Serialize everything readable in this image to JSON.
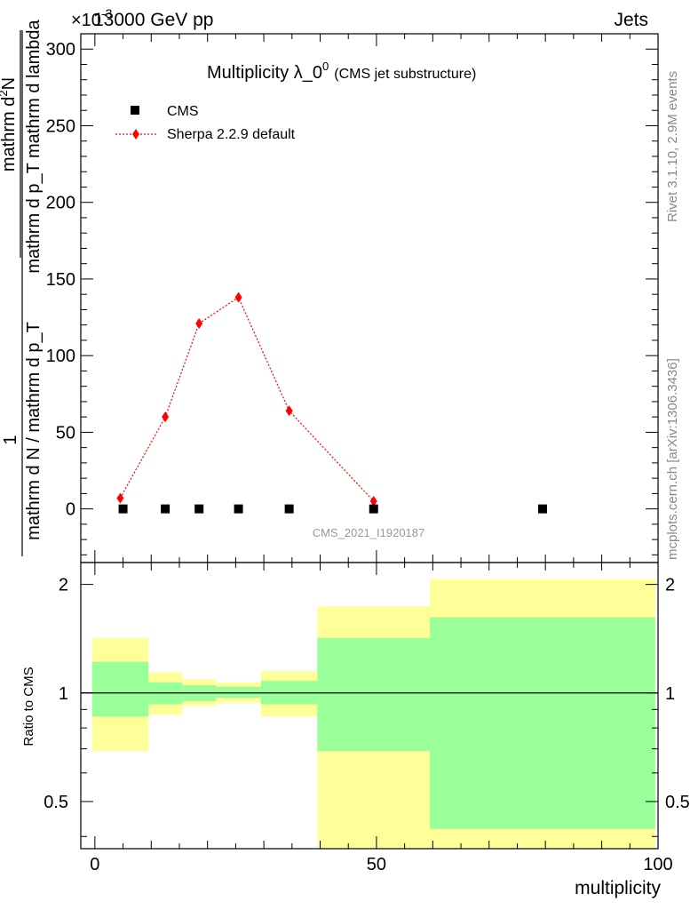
{
  "header": {
    "left": "13000 GeV pp",
    "right": "Jets",
    "exponent_label": "×10",
    "exponent_sup": "-3"
  },
  "side_labels": {
    "rivet": "Rivet 3.1.10,  2.9M events",
    "mcplots": "mcplots.cern.ch [arXiv:1306.3436]"
  },
  "watermark": "CMS_2021_I1920187",
  "colors": {
    "mc": "#ff0000",
    "data": "#000000",
    "band_inner": "#99ff99",
    "band_outer": "#ffff99"
  },
  "chart_data": [
    {
      "type": "scatter",
      "title": "Multiplicity λ_0",
      "title_sup": "0",
      "title_suffix": "(CMS jet substructure)",
      "ylabel_numerator": "1",
      "ylabel_denominator": "mathrm d N / mathrm d p_T",
      "ylabel_main": "mathrm d",
      "ylabel_sub": "2",
      "ylabel_tail": "N",
      "ylabel_den2": "mathrm d p_T mathrm d lambda",
      "ylim": [
        -0.035,
        0.31
      ],
      "yticks": [
        0,
        50,
        100,
        150,
        200,
        250,
        300
      ],
      "yscale_note": "values in units of 1e-3",
      "xlim": [
        -2.5,
        100
      ],
      "legend": [
        {
          "name": "CMS",
          "marker": "square"
        },
        {
          "name": "Sherpa 2.2.9 default",
          "marker": "diamond"
        }
      ],
      "series": [
        {
          "name": "CMS",
          "x": [
            5,
            12.5,
            18.5,
            25.5,
            34.5,
            49.5,
            79.5
          ],
          "y": [
            0,
            0,
            0,
            0,
            0,
            0,
            0
          ]
        },
        {
          "name": "Sherpa 2.2.9 default",
          "x": [
            4.5,
            12.5,
            18.5,
            25.5,
            34.5,
            49.5
          ],
          "y": [
            7,
            60,
            121,
            138,
            64,
            5
          ]
        }
      ]
    },
    {
      "type": "area",
      "ylabel": "Ratio to CMS",
      "xlabel": "multiplicity",
      "ylim": [
        0.37,
        2.3
      ],
      "yticks": [
        0.5,
        1,
        2
      ],
      "xticks": [
        0,
        50,
        100
      ],
      "reference_line": 1,
      "bins": [
        {
          "x_low": -0.5,
          "x_high": 9.5,
          "inner_low": 0.86,
          "inner_high": 1.22,
          "outer_low": 0.69,
          "outer_high": 1.42
        },
        {
          "x_low": 9.5,
          "x_high": 15.5,
          "inner_low": 0.93,
          "inner_high": 1.07,
          "outer_low": 0.87,
          "outer_high": 1.14
        },
        {
          "x_low": 15.5,
          "x_high": 21.5,
          "inner_low": 0.95,
          "inner_high": 1.05,
          "outer_low": 0.92,
          "outer_high": 1.09
        },
        {
          "x_low": 21.5,
          "x_high": 29.5,
          "inner_low": 0.97,
          "inner_high": 1.04,
          "outer_low": 0.94,
          "outer_high": 1.07
        },
        {
          "x_low": 29.5,
          "x_high": 39.5,
          "inner_low": 0.93,
          "inner_high": 1.08,
          "outer_low": 0.86,
          "outer_high": 1.15
        },
        {
          "x_low": 39.5,
          "x_high": 59.5,
          "inner_low": 0.69,
          "inner_high": 1.42,
          "outer_low": 0.37,
          "outer_high": 1.74
        },
        {
          "x_low": 59.5,
          "x_high": 99.5,
          "inner_low": 0.42,
          "inner_high": 1.62,
          "outer_low": 0.37,
          "outer_high": 2.07
        }
      ]
    }
  ]
}
